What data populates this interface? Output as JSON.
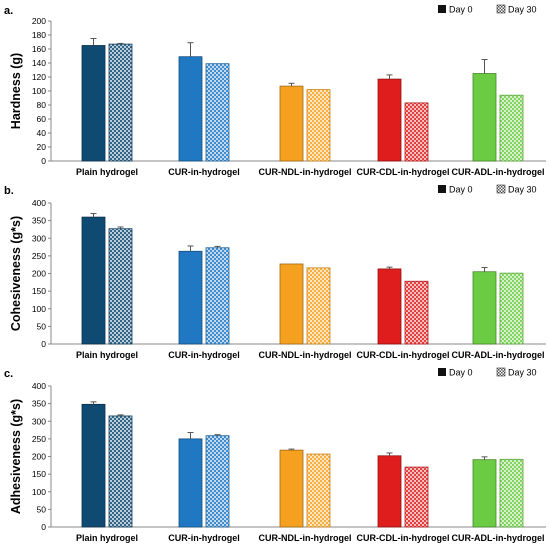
{
  "legend": {
    "day0": "Day 0",
    "day30": "Day 30"
  },
  "chart_data": [
    {
      "type": "bar",
      "panel_label": "a.",
      "ylabel": "Hardness (g)",
      "ylim": [
        0,
        200
      ],
      "yticks": [
        0,
        20,
        40,
        60,
        80,
        100,
        120,
        140,
        160,
        180,
        200
      ],
      "categories": [
        "Plain hydrogel",
        "CUR-in-hydrogel",
        "CUR-NDL-in-hydrogel",
        "CUR-CDL-in-hydrogel",
        "CUR-ADL-in-hydrogel"
      ],
      "series": [
        {
          "name": "Day 0",
          "values": [
            165,
            149,
            107,
            117,
            125
          ],
          "errors": [
            10,
            20,
            4,
            6,
            20
          ]
        },
        {
          "name": "Day 30",
          "values": [
            167,
            139,
            102,
            83,
            94
          ],
          "errors": [
            1,
            0,
            0,
            0,
            0
          ]
        }
      ],
      "legend_position": "top-right",
      "grid": false
    },
    {
      "type": "bar",
      "panel_label": "b.",
      "ylabel": "Cohesiveness (g*s)",
      "ylim": [
        0,
        400
      ],
      "yticks": [
        0,
        50,
        100,
        150,
        200,
        250,
        300,
        350,
        400
      ],
      "categories": [
        "Plain hydrogel",
        "CUR-in-hydrogel",
        "CUR-NDL-in-hydrogel",
        "CUR-CDL-in-hydrogel",
        "CUR-ADL-in-hydrogel"
      ],
      "series": [
        {
          "name": "Day 0",
          "values": [
            360,
            263,
            227,
            213,
            205
          ],
          "errors": [
            10,
            15,
            0,
            5,
            12
          ]
        },
        {
          "name": "Day 30",
          "values": [
            327,
            273,
            216,
            178,
            201
          ],
          "errors": [
            5,
            4,
            0,
            0,
            0
          ]
        }
      ],
      "legend_position": "top-right",
      "grid": false
    },
    {
      "type": "bar",
      "panel_label": "c.",
      "ylabel": "Adhesiveness (g*s)",
      "ylim": [
        0,
        400
      ],
      "yticks": [
        0,
        50,
        100,
        150,
        200,
        250,
        300,
        350,
        400
      ],
      "categories": [
        "Plain hydrogel",
        "CUR-in-hydrogel",
        "CUR-NDL-in-hydrogel",
        "CUR-CDL-in-hydrogel",
        "CUR-ADL-in-hydrogel"
      ],
      "series": [
        {
          "name": "Day 0",
          "values": [
            348,
            250,
            218,
            202,
            191
          ],
          "errors": [
            7,
            18,
            3,
            8,
            8
          ]
        },
        {
          "name": "Day 30",
          "values": [
            315,
            259,
            207,
            170,
            192
          ],
          "errors": [
            3,
            3,
            0,
            0,
            0
          ]
        }
      ],
      "legend_position": "top-right",
      "grid": false
    }
  ],
  "colors": {
    "categories": [
      "#0f4a73",
      "#1f78c1",
      "#f5a11f",
      "#e01d1d",
      "#6bcc44"
    ],
    "axis": "#888888",
    "text": "#000000"
  }
}
